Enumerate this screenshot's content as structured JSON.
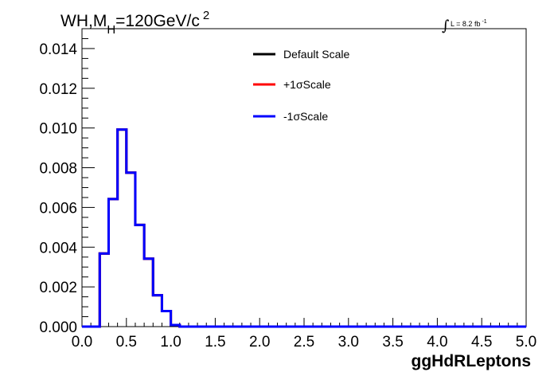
{
  "chart_data": {
    "type": "histogram",
    "title": {
      "main": "WH,M",
      "subscript": "H",
      "rest": "=120GeV/c",
      "superscript": "2"
    },
    "lumi": {
      "integral": "∫",
      "text": "L = 8.2 fb",
      "superscript": "-1"
    },
    "xlabel": "ggHdRLeptons",
    "ylabel": "",
    "xlim": [
      0.0,
      5.0
    ],
    "ylim": [
      0.0,
      0.015
    ],
    "x_ticks": [
      "0.0",
      "0.5",
      "1.0",
      "1.5",
      "2.0",
      "2.5",
      "3.0",
      "3.5",
      "4.0",
      "4.5",
      "5.0"
    ],
    "y_ticks": [
      "0.000",
      "0.002",
      "0.004",
      "0.006",
      "0.008",
      "0.010",
      "0.012",
      "0.014"
    ],
    "bin_edges": [
      0.0,
      0.1,
      0.2,
      0.3,
      0.4,
      0.5,
      0.6,
      0.7,
      0.8,
      0.9,
      1.0,
      1.1,
      1.2,
      5.0
    ],
    "series": [
      {
        "name": "Default Scale",
        "color": "#000000",
        "values": [
          0.0,
          0.0,
          0.00368,
          0.00642,
          0.00992,
          0.00775,
          0.00512,
          0.00342,
          0.00158,
          0.00078,
          8e-05,
          0.0,
          0.0
        ]
      },
      {
        "name": "+1σScale",
        "color": "#ff0000",
        "values": [
          0.0,
          0.0,
          0.00368,
          0.00642,
          0.00992,
          0.00775,
          0.00512,
          0.00342,
          0.00158,
          0.00078,
          8e-05,
          0.0,
          0.0
        ]
      },
      {
        "name": "-1σScale",
        "color": "#0000ff",
        "values": [
          0.0,
          0.0,
          0.00368,
          0.00642,
          0.00992,
          0.00775,
          0.00512,
          0.00342,
          0.00158,
          0.00078,
          8e-05,
          0.0,
          0.0
        ]
      }
    ],
    "legend": [
      {
        "label": "Default Scale",
        "color": "#000000"
      },
      {
        "label": "+1σScale",
        "color": "#ff0000"
      },
      {
        "label": "-1σScale",
        "color": "#0000ff"
      }
    ]
  }
}
